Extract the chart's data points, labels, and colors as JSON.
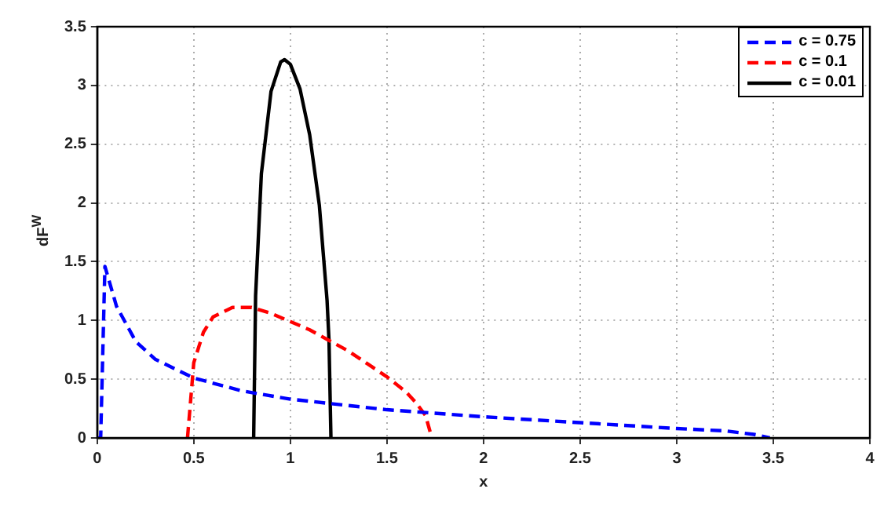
{
  "chart_data": {
    "type": "line",
    "xlabel": "x",
    "ylabel": "dF$^{W}$",
    "xlim": [
      0,
      4
    ],
    "ylim": [
      0,
      3.5
    ],
    "xticks": [
      0,
      0.5,
      1,
      1.5,
      2,
      2.5,
      3,
      3.5,
      4
    ],
    "yticks": [
      0,
      0.5,
      1,
      1.5,
      2,
      2.5,
      3,
      3.5
    ],
    "grid": true,
    "legend": "top right",
    "marker": "none",
    "series": [
      {
        "name": "c = 0.75",
        "color": "#0000ff",
        "line_style": "dashed",
        "x": [
          0,
          0.018,
          0.04,
          0.1,
          0.2,
          0.3,
          0.5,
          0.75,
          1,
          1.5,
          2,
          2.5,
          3,
          3.25,
          3.4,
          3.482
        ],
        "values": [
          0,
          0,
          1.46,
          1.12,
          0.82,
          0.67,
          0.51,
          0.4,
          0.33,
          0.24,
          0.18,
          0.13,
          0.08,
          0.06,
          0.03,
          0
        ]
      },
      {
        "name": "c = 0.1",
        "color": "#ff0000",
        "line_style": "dashed",
        "x": [
          0.4675,
          0.5,
          0.55,
          0.6,
          0.7,
          0.8,
          0.9,
          1,
          1.1,
          1.2,
          1.3,
          1.4,
          1.5,
          1.6,
          1.65,
          1.7,
          1.7325
        ],
        "values": [
          0,
          0.64,
          0.9,
          1.03,
          1.11,
          1.11,
          1.06,
          0.99,
          0.92,
          0.83,
          0.74,
          0.63,
          0.52,
          0.39,
          0.3,
          0.19,
          0
        ]
      },
      {
        "name": "c = 0.01",
        "color": "#000000",
        "line_style": "solid",
        "x": [
          0.81,
          0.82,
          0.85,
          0.9,
          0.95,
          0.97,
          1,
          1.05,
          1.1,
          1.15,
          1.19,
          1.2,
          1.21
        ],
        "values": [
          0,
          1.21,
          2.25,
          2.95,
          3.2,
          3.22,
          3.18,
          2.97,
          2.58,
          1.98,
          1.17,
          0.83,
          0
        ]
      }
    ]
  }
}
